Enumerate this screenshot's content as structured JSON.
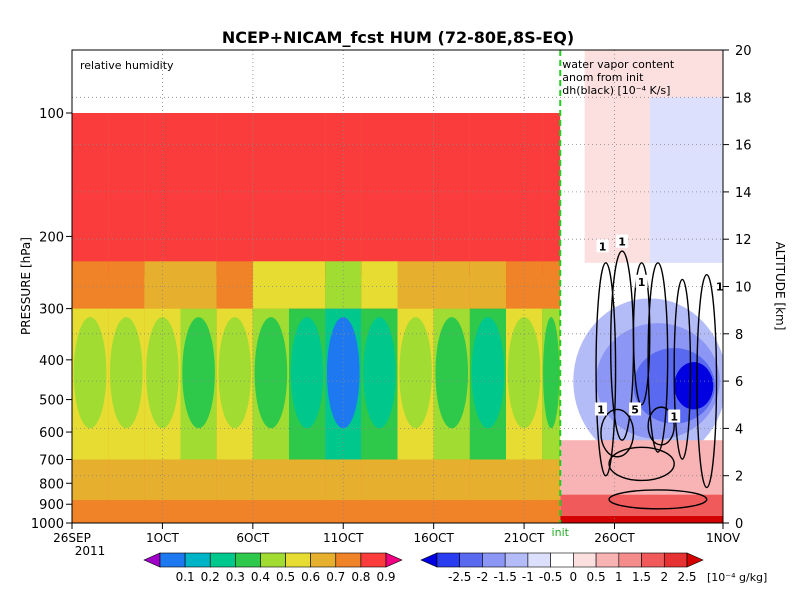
{
  "chart_data": {
    "type": "heatmap",
    "title": "NCEP+NICAM_fcst HUM (72-80E,8S-EQ)",
    "panel_label_left": "relative humidity",
    "panel_label_right": [
      "water vapor content",
      "anom from init",
      "dh(black) [10⁻⁴ K/s]"
    ],
    "left_axis": {
      "label": "PRESSURE [hPa]",
      "ticks": [
        "100",
        "200",
        "300",
        "400",
        "500",
        "600",
        "700",
        "800",
        "900",
        "1000"
      ],
      "tick_values": [
        100,
        200,
        300,
        400,
        500,
        600,
        700,
        800,
        900,
        1000
      ],
      "scale": "log",
      "range": [
        1000,
        100
      ]
    },
    "right_axis": {
      "label": "ALTITUDE [km]",
      "ticks": [
        "0",
        "2",
        "4",
        "6",
        "8",
        "10",
        "12",
        "14",
        "16",
        "18",
        "20"
      ],
      "tick_values": [
        0,
        2,
        4,
        6,
        8,
        10,
        12,
        14,
        16,
        18,
        20
      ],
      "range": [
        0,
        20
      ]
    },
    "x_axis": {
      "ticks": [
        "26SEP",
        "1OCT",
        "6OCT",
        "11OCT",
        "16OCT",
        "21OCT",
        "26OCT",
        "1NOV"
      ],
      "tick_dates": [
        "2011-09-26",
        "2011-10-01",
        "2011-10-06",
        "2011-10-11",
        "2011-10-16",
        "2011-10-21",
        "2011-10-26",
        "2011-11-01"
      ],
      "year_label": "2011",
      "range": [
        "2011-09-26",
        "2011-11-01"
      ],
      "init_date": "2011-10-23",
      "init_label": "init"
    },
    "grid": true,
    "left_colorbar": {
      "levels": [
        "0.1",
        "0.2",
        "0.3",
        "0.4",
        "0.5",
        "0.6",
        "0.7",
        "0.8",
        "0.9"
      ],
      "colors": [
        "#a000c8",
        "#1e78f0",
        "#00b4c8",
        "#00c88c",
        "#2ec84a",
        "#a0dc32",
        "#e6dc32",
        "#e6af2d",
        "#f08228",
        "#fa3c3c",
        "#f00082"
      ]
    },
    "right_colorbar": {
      "levels": [
        "-2.5",
        "-2",
        "-1.5",
        "-1",
        "-0.5",
        "0",
        "0.5",
        "1",
        "1.5",
        "2",
        "2.5"
      ],
      "units": "[10⁻⁴ g/kg]",
      "colors": [
        "#0000e0",
        "#2a3cf0",
        "#5a6af0",
        "#8c96f4",
        "#b4bcf8",
        "#dce0fc",
        "#ffffff",
        "#fce0e0",
        "#f8b4b4",
        "#f48c8c",
        "#f05a5a",
        "#e63232",
        "#d20000"
      ]
    },
    "contour_labels": [
      "1",
      "1",
      "1",
      "1",
      "5",
      "1",
      "1"
    ],
    "rh_columns": [
      {
        "date": "2011-09-26",
        "low": 0.78,
        "mid": 0.64,
        "upper": 0.82
      },
      {
        "date": "2011-09-28",
        "low": 0.8,
        "mid": 0.68,
        "upper": 0.8
      },
      {
        "date": "2011-09-30",
        "low": 0.82,
        "mid": 0.62,
        "upper": 0.78
      },
      {
        "date": "2011-10-02",
        "low": 0.8,
        "mid": 0.55,
        "upper": 0.76
      },
      {
        "date": "2011-10-04",
        "low": 0.82,
        "mid": 0.66,
        "upper": 0.8
      },
      {
        "date": "2011-10-06",
        "low": 0.8,
        "mid": 0.5,
        "upper": 0.66
      },
      {
        "date": "2011-10-08",
        "low": 0.78,
        "mid": 0.4,
        "upper": 0.6
      },
      {
        "date": "2011-10-10",
        "low": 0.8,
        "mid": 0.3,
        "upper": 0.56
      },
      {
        "date": "2011-10-12",
        "low": 0.8,
        "mid": 0.45,
        "upper": 0.62
      },
      {
        "date": "2011-10-14",
        "low": 0.82,
        "mid": 0.62,
        "upper": 0.74
      },
      {
        "date": "2011-10-16",
        "low": 0.8,
        "mid": 0.56,
        "upper": 0.78
      },
      {
        "date": "2011-10-18",
        "low": 0.8,
        "mid": 0.48,
        "upper": 0.76
      },
      {
        "date": "2011-10-20",
        "low": 0.82,
        "mid": 0.62,
        "upper": 0.8
      },
      {
        "date": "2011-10-22",
        "low": 0.8,
        "mid": 0.55,
        "upper": 0.82
      }
    ]
  }
}
